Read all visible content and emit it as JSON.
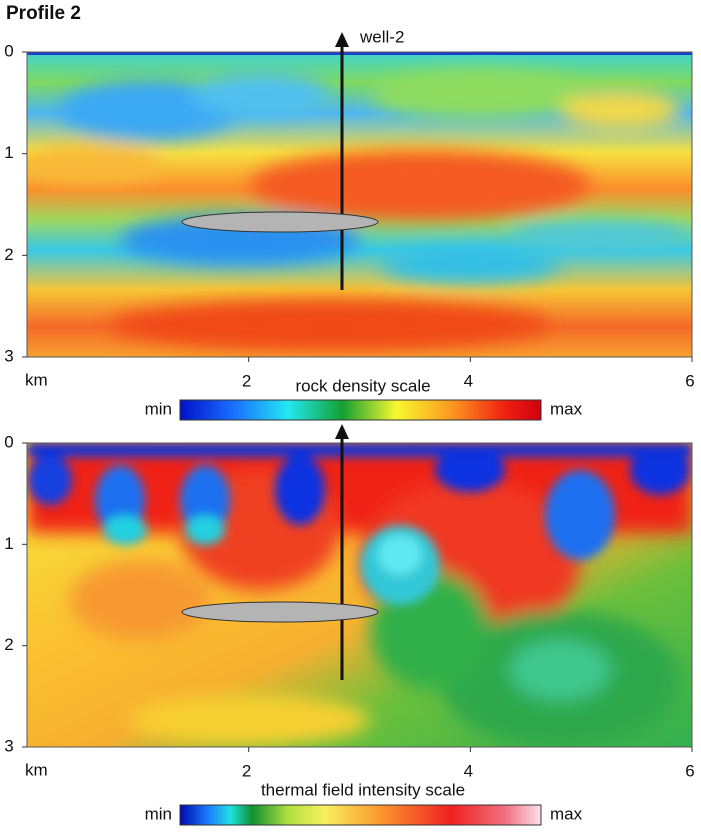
{
  "title": "Profile 2",
  "panels": [
    {
      "xlim": [
        0,
        6
      ],
      "ylim": [
        0,
        3
      ],
      "xticks": [
        2,
        4,
        6
      ],
      "yticks": [
        0,
        1,
        2,
        3
      ],
      "x_unit": "km",
      "well_label": "well-2",
      "scale_title": "rock density scale",
      "scale_min": "min",
      "scale_max": "max"
    },
    {
      "xlim": [
        0,
        6
      ],
      "ylim": [
        0,
        3
      ],
      "xticks": [
        2,
        4,
        6
      ],
      "yticks": [
        0,
        1,
        2,
        3
      ],
      "x_unit": "km",
      "scale_title": "thermal field intensity scale",
      "scale_min": "min",
      "scale_max": "max"
    }
  ]
}
